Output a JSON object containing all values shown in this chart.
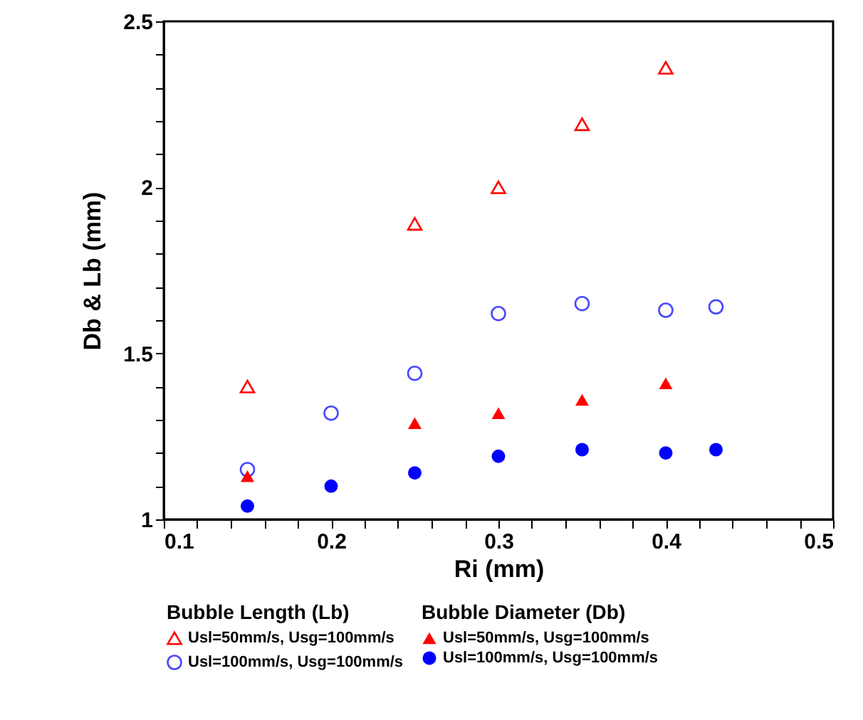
{
  "chart_data": {
    "type": "scatter",
    "xlabel": "Ri (mm)",
    "ylabel": "Db & Lb (mm)",
    "legend_title": [
      "Bubble Length (Lb)",
      "Bubble Diameter (Db)"
    ],
    "series": [
      {
        "name": "Usl=50mm/s, Usg=100mm/s",
        "color": "#ff0000",
        "marker": "triangle",
        "x": [
          0.15,
          0.25,
          0.3,
          0.35,
          0.4
        ],
        "values": [
          1.4,
          1.89,
          2.0,
          2.19,
          2.36
        ]
      },
      {
        "name": "Usl=100mm/s, Usg=100mm/s",
        "color": "#4848ff",
        "marker": "circle",
        "x": [
          0.15,
          0.2,
          0.25,
          0.3,
          0.35,
          0.4,
          0.43
        ],
        "values": [
          1.15,
          1.32,
          1.44,
          1.62,
          1.65,
          1.63,
          1.64
        ]
      },
      {
        "name": "Usl=50mm/s, Usg=100mm/s",
        "color": "#ff0000",
        "marker": "triangle",
        "x": [
          0.15,
          0.25,
          0.3,
          0.35,
          0.4
        ],
        "values": [
          1.13,
          1.29,
          1.32,
          1.36,
          1.41
        ]
      },
      {
        "name": "Usl=100mm/s, Usg=100mm/s",
        "color": "#0000ff",
        "marker": "circle",
        "x": [
          0.15,
          0.2,
          0.25,
          0.3,
          0.35,
          0.4,
          0.43
        ],
        "values": [
          1.04,
          1.1,
          1.14,
          1.19,
          1.21,
          1.2,
          1.21
        ]
      }
    ],
    "xlim": [
      0.1,
      0.5
    ],
    "xticks": [
      0.1,
      {
        "value": 0.12,
        "label": null
      },
      {
        "value": 0.14,
        "label": null
      },
      {
        "value": 0.16,
        "label": null
      },
      {
        "value": 0.18,
        "label": null
      },
      0.2,
      {
        "value": 0.22,
        "label": null
      },
      {
        "value": 0.24,
        "label": null
      },
      {
        "value": 0.26,
        "label": null
      },
      {
        "value": 0.28,
        "label": null
      },
      0.3,
      {
        "value": 0.32,
        "label": null
      },
      {
        "value": 0.34,
        "label": null
      },
      {
        "value": 0.36,
        "label": null
      },
      {
        "value": 0.38,
        "label": null
      },
      0.4,
      {
        "value": 0.42,
        "label": null
      },
      {
        "value": 0.44,
        "label": null
      },
      {
        "value": 0.46,
        "label": null
      },
      {
        "value": 0.48,
        "label": null
      },
      0.5
    ],
    "ylim": [
      1,
      2.5
    ],
    "yticks": [
      1,
      {
        "value": 1.1,
        "label": null
      },
      {
        "value": 1.2,
        "label": null
      },
      {
        "value": 1.3,
        "label": null
      },
      {
        "value": 1.4,
        "label": null
      },
      1.5,
      {
        "value": 1.6,
        "label": null
      },
      {
        "value": 1.7,
        "label": null
      },
      {
        "value": 1.8,
        "label": null
      },
      {
        "value": 1.9,
        "label": null
      },
      2,
      {
        "value": 2.1,
        "label": null
      },
      {
        "value": 2.2,
        "label": null
      },
      {
        "value": 2.3,
        "label": null
      },
      {
        "value": 2.4,
        "label": null
      },
      2.5
    ],
    "grid": false,
    "legend": "bottom"
  }
}
